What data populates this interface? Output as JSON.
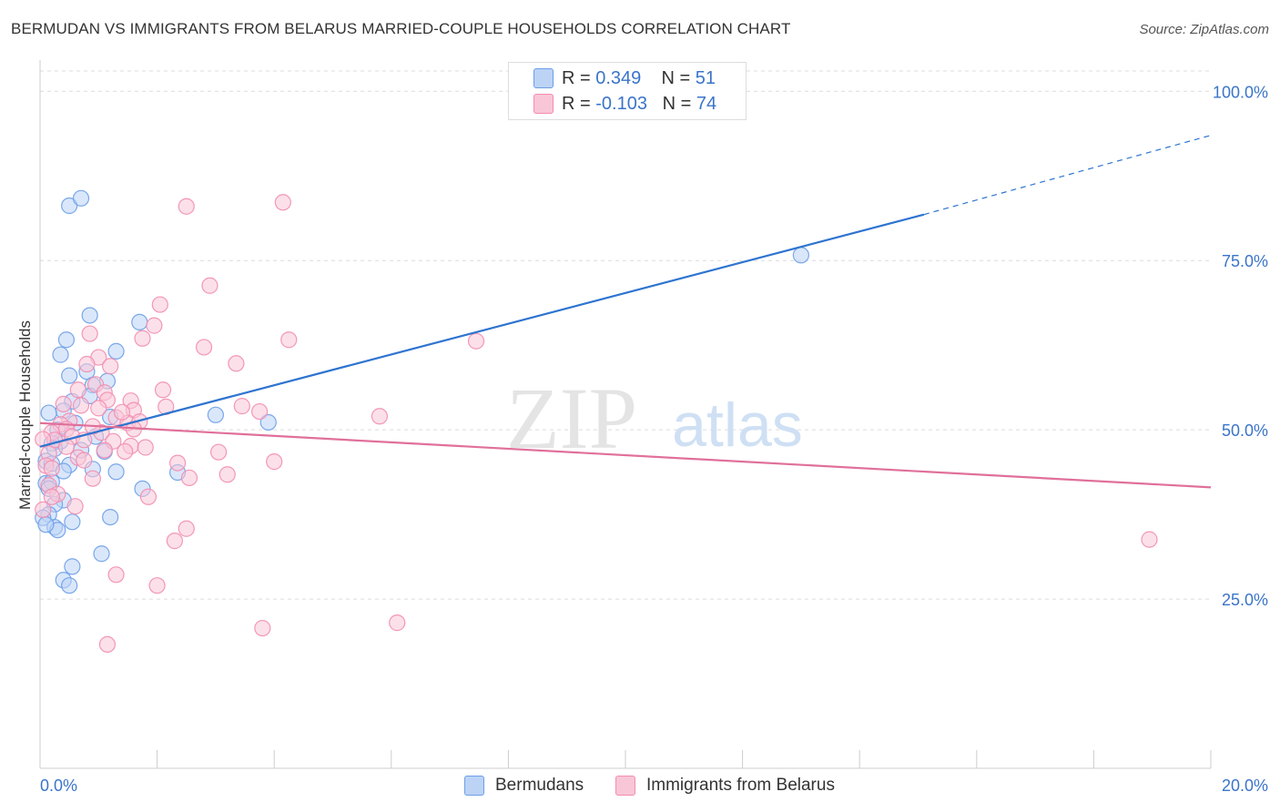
{
  "title": "BERMUDAN VS IMMIGRANTS FROM BELARUS MARRIED-COUPLE HOUSEHOLDS CORRELATION CHART",
  "source": "Source: ZipAtlas.com",
  "watermark": {
    "zip": "ZIP",
    "atlas": "atlas"
  },
  "legend_top": [
    {
      "r_label": "R = ",
      "r_value": "0.349",
      "n_label": "N = ",
      "n_value": "51",
      "color": "#6c9ee8"
    },
    {
      "r_label": "R = ",
      "r_value": "-0.103",
      "n_label": "N = ",
      "n_value": "74",
      "color": "#f28db0"
    }
  ],
  "chart_data": {
    "type": "scatter",
    "title": "BERMUDAN VS IMMIGRANTS FROM BELARUS MARRIED-COUPLE HOUSEHOLDS CORRELATION CHART",
    "xlabel": "",
    "ylabel": "Married-couple Households",
    "xlim": [
      0,
      20
    ],
    "ylim": [
      0,
      103
    ],
    "x_tick_labels": [
      "0.0%",
      "20.0%"
    ],
    "y_ticks": [
      25,
      50,
      75,
      100
    ],
    "y_tick_labels": [
      "25.0%",
      "50.0%",
      "75.0%",
      "100.0%"
    ],
    "grid": true,
    "series": [
      {
        "name": "Bermudans",
        "color": "#6c9ee8",
        "fill": "#bcd3f5",
        "line_color": "#2e74d0",
        "trend": {
          "x0": 0,
          "y0": 47.5,
          "x1": 15.1,
          "y1": 81.8,
          "dash_x1": 20,
          "dash_y1": 93.5
        },
        "points": [
          [
            0.5,
            83.1
          ],
          [
            0.7,
            84.2
          ],
          [
            13.0,
            75.8
          ],
          [
            0.85,
            66.9
          ],
          [
            1.7,
            65.9
          ],
          [
            0.45,
            63.3
          ],
          [
            1.3,
            61.6
          ],
          [
            0.35,
            61.1
          ],
          [
            0.5,
            58.0
          ],
          [
            0.8,
            58.6
          ],
          [
            1.15,
            57.2
          ],
          [
            0.9,
            56.6
          ],
          [
            0.85,
            55.0
          ],
          [
            0.55,
            54.2
          ],
          [
            0.4,
            52.8
          ],
          [
            0.15,
            52.5
          ],
          [
            1.2,
            51.9
          ],
          [
            3.0,
            52.2
          ],
          [
            0.6,
            51.0
          ],
          [
            3.9,
            51.1
          ],
          [
            0.3,
            50.0
          ],
          [
            0.95,
            49.0
          ],
          [
            0.35,
            48.3
          ],
          [
            0.2,
            48.0
          ],
          [
            0.7,
            47.0
          ],
          [
            0.25,
            47.2
          ],
          [
            1.1,
            46.8
          ],
          [
            0.1,
            45.4
          ],
          [
            0.2,
            45.0
          ],
          [
            0.5,
            44.8
          ],
          [
            0.9,
            44.2
          ],
          [
            2.35,
            43.7
          ],
          [
            1.3,
            43.8
          ],
          [
            0.4,
            43.9
          ],
          [
            0.1,
            42.1
          ],
          [
            0.2,
            42.3
          ],
          [
            0.15,
            41.3
          ],
          [
            1.75,
            41.3
          ],
          [
            0.4,
            39.6
          ],
          [
            0.25,
            39.0
          ],
          [
            0.15,
            37.5
          ],
          [
            0.05,
            37.0
          ],
          [
            1.2,
            37.1
          ],
          [
            0.55,
            36.4
          ],
          [
            0.25,
            35.6
          ],
          [
            0.3,
            35.2
          ],
          [
            0.1,
            36.0
          ],
          [
            0.55,
            29.8
          ],
          [
            1.05,
            31.7
          ],
          [
            0.4,
            27.8
          ],
          [
            0.5,
            27.0
          ]
        ]
      },
      {
        "name": "Immigrants from Belarus",
        "color": "#f28db0",
        "fill": "#f9c6d7",
        "line_color": "#e0709a",
        "trend": {
          "x0": 0,
          "y0": 51.0,
          "x1": 20,
          "y1": 41.5
        },
        "points": [
          [
            4.15,
            83.6
          ],
          [
            2.5,
            83.0
          ],
          [
            2.9,
            71.3
          ],
          [
            2.05,
            68.5
          ],
          [
            1.95,
            65.4
          ],
          [
            1.75,
            63.5
          ],
          [
            0.85,
            64.2
          ],
          [
            4.25,
            63.3
          ],
          [
            7.45,
            63.1
          ],
          [
            2.8,
            62.2
          ],
          [
            1.0,
            60.7
          ],
          [
            3.35,
            59.8
          ],
          [
            0.8,
            59.7
          ],
          [
            1.2,
            59.4
          ],
          [
            0.95,
            56.7
          ],
          [
            0.65,
            55.9
          ],
          [
            2.1,
            55.9
          ],
          [
            1.1,
            55.5
          ],
          [
            1.15,
            54.4
          ],
          [
            1.55,
            54.3
          ],
          [
            0.4,
            53.8
          ],
          [
            0.7,
            53.6
          ],
          [
            3.45,
            53.5
          ],
          [
            2.15,
            53.4
          ],
          [
            1.0,
            53.2
          ],
          [
            1.6,
            52.9
          ],
          [
            3.75,
            52.7
          ],
          [
            5.8,
            52.0
          ],
          [
            1.3,
            51.8
          ],
          [
            0.5,
            51.3
          ],
          [
            1.5,
            51.0
          ],
          [
            1.7,
            51.2
          ],
          [
            0.35,
            50.8
          ],
          [
            0.45,
            50.1
          ],
          [
            1.6,
            50.1
          ],
          [
            0.2,
            49.6
          ],
          [
            1.05,
            49.6
          ],
          [
            0.55,
            49.0
          ],
          [
            0.25,
            48.5
          ],
          [
            0.75,
            48.5
          ],
          [
            0.05,
            48.6
          ],
          [
            1.25,
            48.3
          ],
          [
            1.55,
            47.6
          ],
          [
            0.45,
            47.5
          ],
          [
            1.8,
            47.4
          ],
          [
            1.1,
            47.0
          ],
          [
            1.45,
            46.8
          ],
          [
            3.05,
            46.7
          ],
          [
            0.15,
            46.5
          ],
          [
            0.65,
            45.9
          ],
          [
            0.75,
            45.5
          ],
          [
            2.35,
            45.1
          ],
          [
            4.0,
            45.3
          ],
          [
            0.1,
            44.7
          ],
          [
            0.2,
            44.3
          ],
          [
            2.55,
            42.9
          ],
          [
            3.2,
            43.4
          ],
          [
            0.9,
            42.8
          ],
          [
            0.15,
            41.8
          ],
          [
            0.3,
            40.5
          ],
          [
            0.2,
            40.1
          ],
          [
            1.85,
            40.1
          ],
          [
            0.05,
            38.2
          ],
          [
            2.5,
            35.4
          ],
          [
            2.3,
            33.6
          ],
          [
            18.95,
            33.8
          ],
          [
            1.3,
            28.6
          ],
          [
            2.0,
            27.0
          ],
          [
            3.8,
            20.7
          ],
          [
            6.1,
            21.5
          ],
          [
            1.15,
            18.3
          ],
          [
            0.6,
            38.7
          ],
          [
            1.4,
            52.6
          ],
          [
            0.9,
            50.5
          ]
        ]
      }
    ]
  },
  "legend_bottom": [
    {
      "label": "Bermudans",
      "color": "#6c9ee8",
      "fill": "#bcd3f5"
    },
    {
      "label": "Immigrants from Belarus",
      "color": "#f28db0",
      "fill": "#f9c6d7"
    }
  ]
}
